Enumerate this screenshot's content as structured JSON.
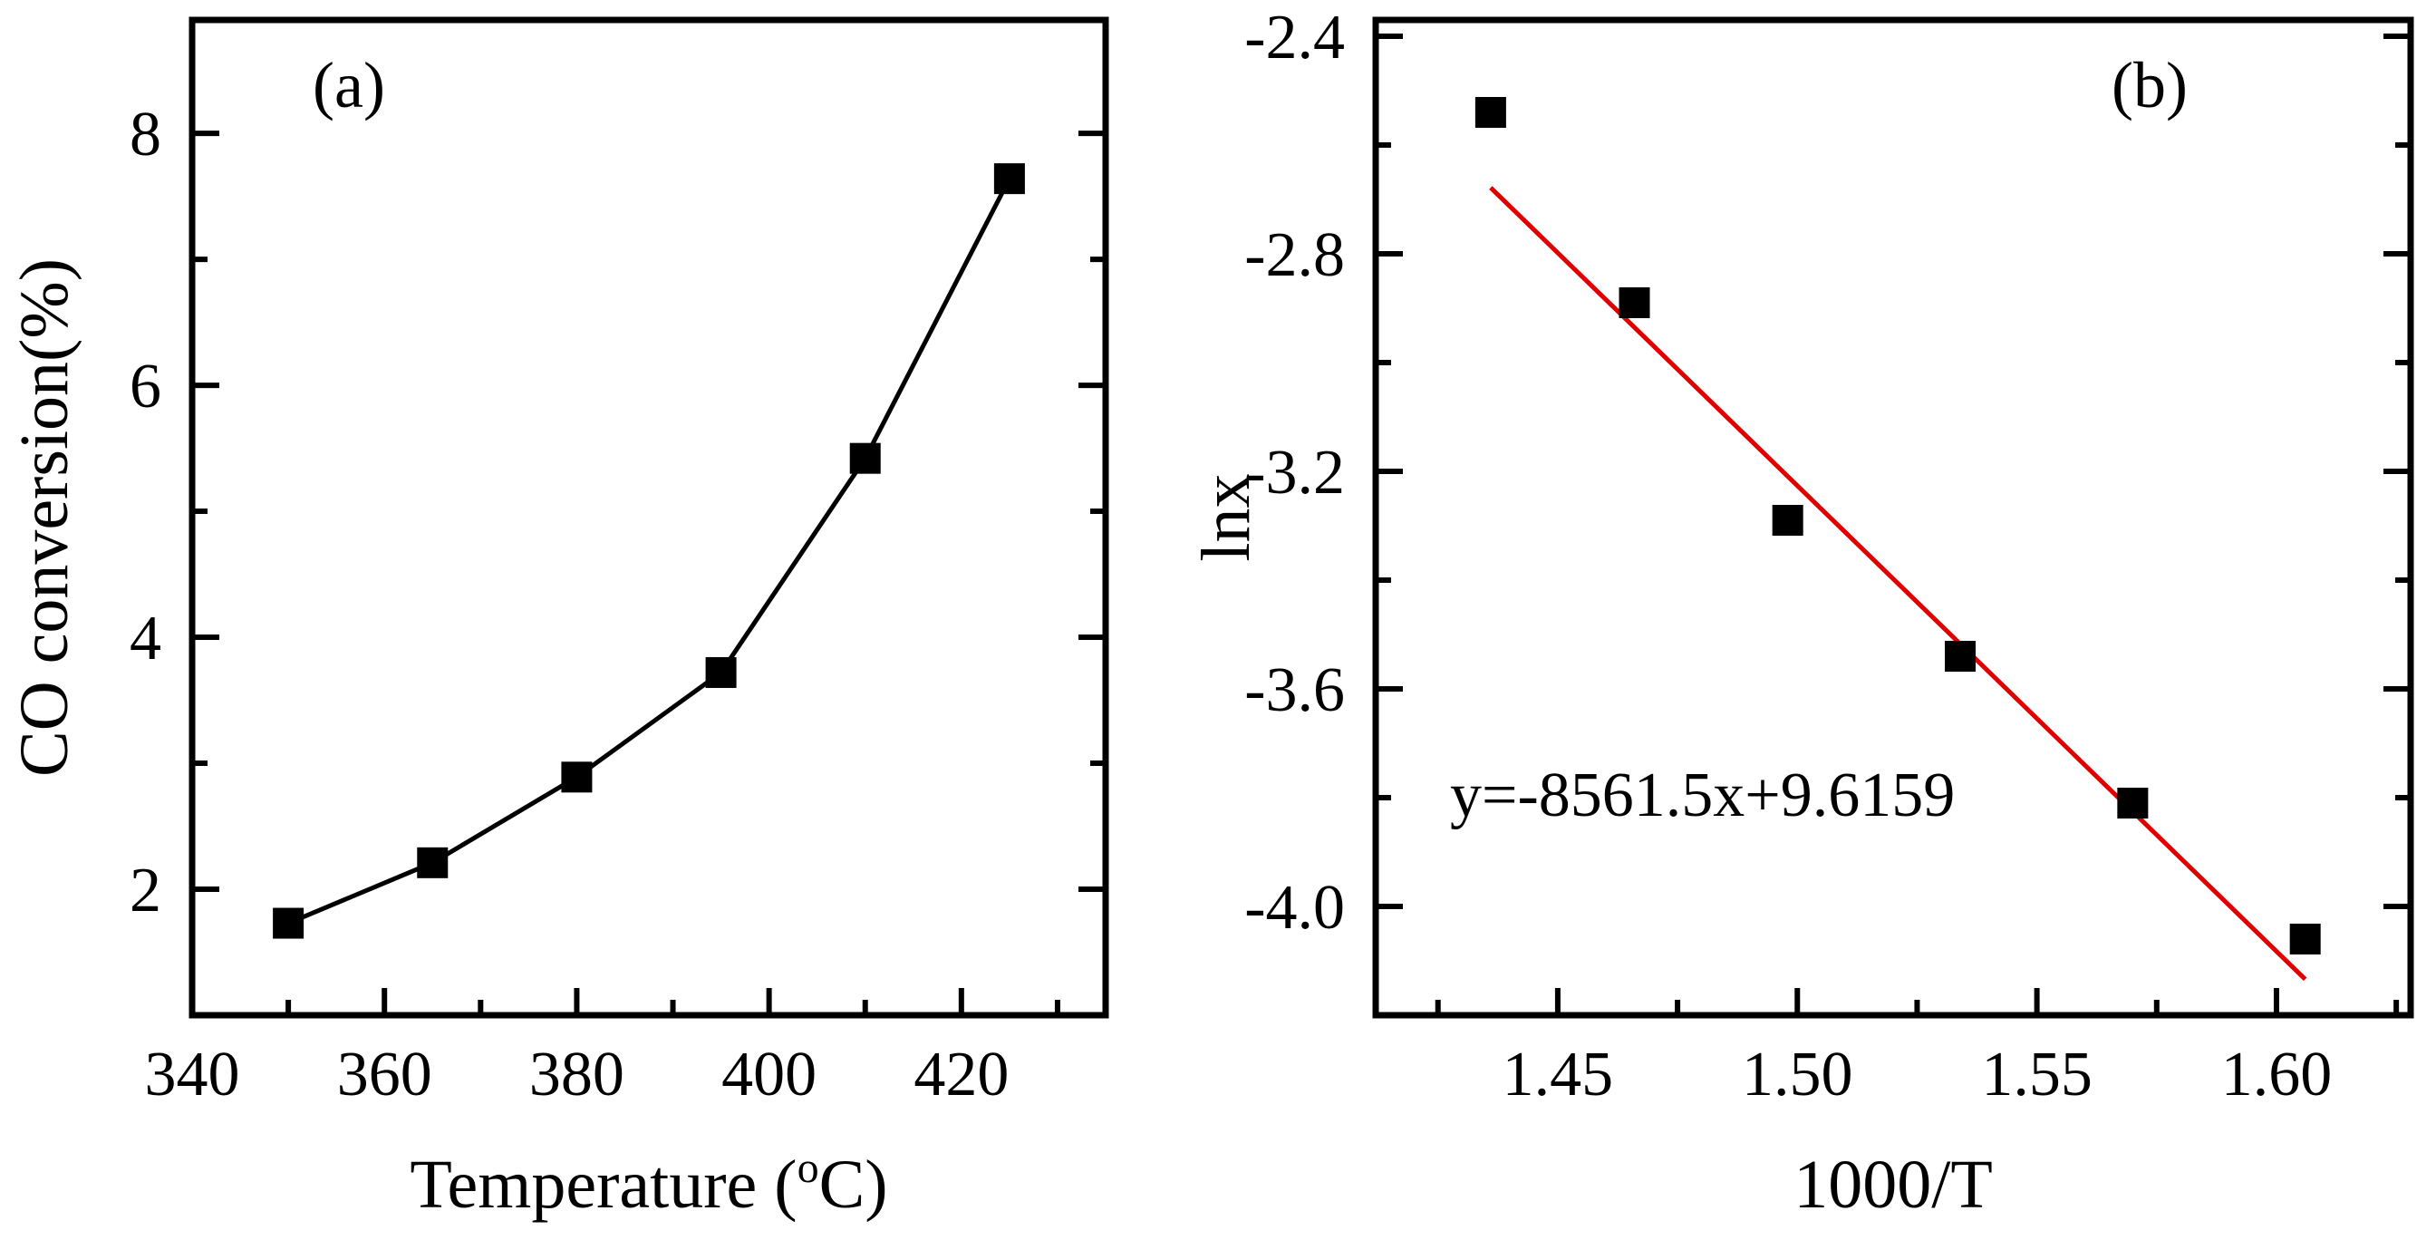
{
  "chart_data": [
    {
      "type": "line",
      "panel_label": "(a)",
      "xlabel": "Temperature (",
      "xlabel_sup": "o",
      "xlabel_tail": "C)",
      "ylabel": "CO conversion(%)",
      "xlim": [
        340,
        435
      ],
      "ylim": [
        1.0,
        8.9
      ],
      "xticks": [
        340,
        360,
        380,
        400,
        420
      ],
      "xtick_labels": [
        "340",
        "360",
        "380",
        "400",
        "420"
      ],
      "x_minor_ticks": [
        350,
        370,
        390,
        410,
        430
      ],
      "yticks": [
        2,
        4,
        6,
        8
      ],
      "ytick_labels": [
        "2",
        "4",
        "6",
        "8"
      ],
      "y_minor_ticks": [
        3,
        5,
        7
      ],
      "series": [
        {
          "name": "CO conversion",
          "marker": "square",
          "color": "#000000",
          "x": [
            350,
            365,
            380,
            395,
            410,
            425
          ],
          "y": [
            1.73,
            2.21,
            2.89,
            3.72,
            5.42,
            7.64
          ]
        }
      ]
    },
    {
      "type": "scatter",
      "panel_label": "(b)",
      "xlabel": "1000/T",
      "ylabel": "lnx",
      "xlim": [
        1.412,
        1.628
      ],
      "ylim": [
        -4.2,
        -2.37
      ],
      "xticks": [
        1.45,
        1.5,
        1.55,
        1.6
      ],
      "xtick_labels": [
        "1.45",
        "1.50",
        "1.55",
        "1.60"
      ],
      "x_minor_ticks": [
        1.425,
        1.475,
        1.525,
        1.575,
        1.625
      ],
      "yticks": [
        -2.4,
        -2.8,
        -3.2,
        -3.6,
        -4.0
      ],
      "ytick_labels": [
        "-2.4",
        "-2.8",
        "-3.2",
        "-3.6",
        "-4.0"
      ],
      "y_minor_ticks": [
        -2.6,
        -3.0,
        -3.4,
        -3.8
      ],
      "series": [
        {
          "name": "lnx",
          "marker": "square",
          "color": "#000000",
          "x": [
            1.436,
            1.466,
            1.498,
            1.534,
            1.57,
            1.606
          ],
          "y": [
            -2.54,
            -2.89,
            -3.29,
            -3.54,
            -3.81,
            -4.06
          ]
        }
      ],
      "fit": {
        "color": "#e00000",
        "slope": -8561.5,
        "intercept": 9.6159,
        "x_scale": 0.001,
        "x_start": 1.436,
        "x_end": 1.606,
        "label": "y=-8561.5x+9.6159"
      }
    }
  ]
}
